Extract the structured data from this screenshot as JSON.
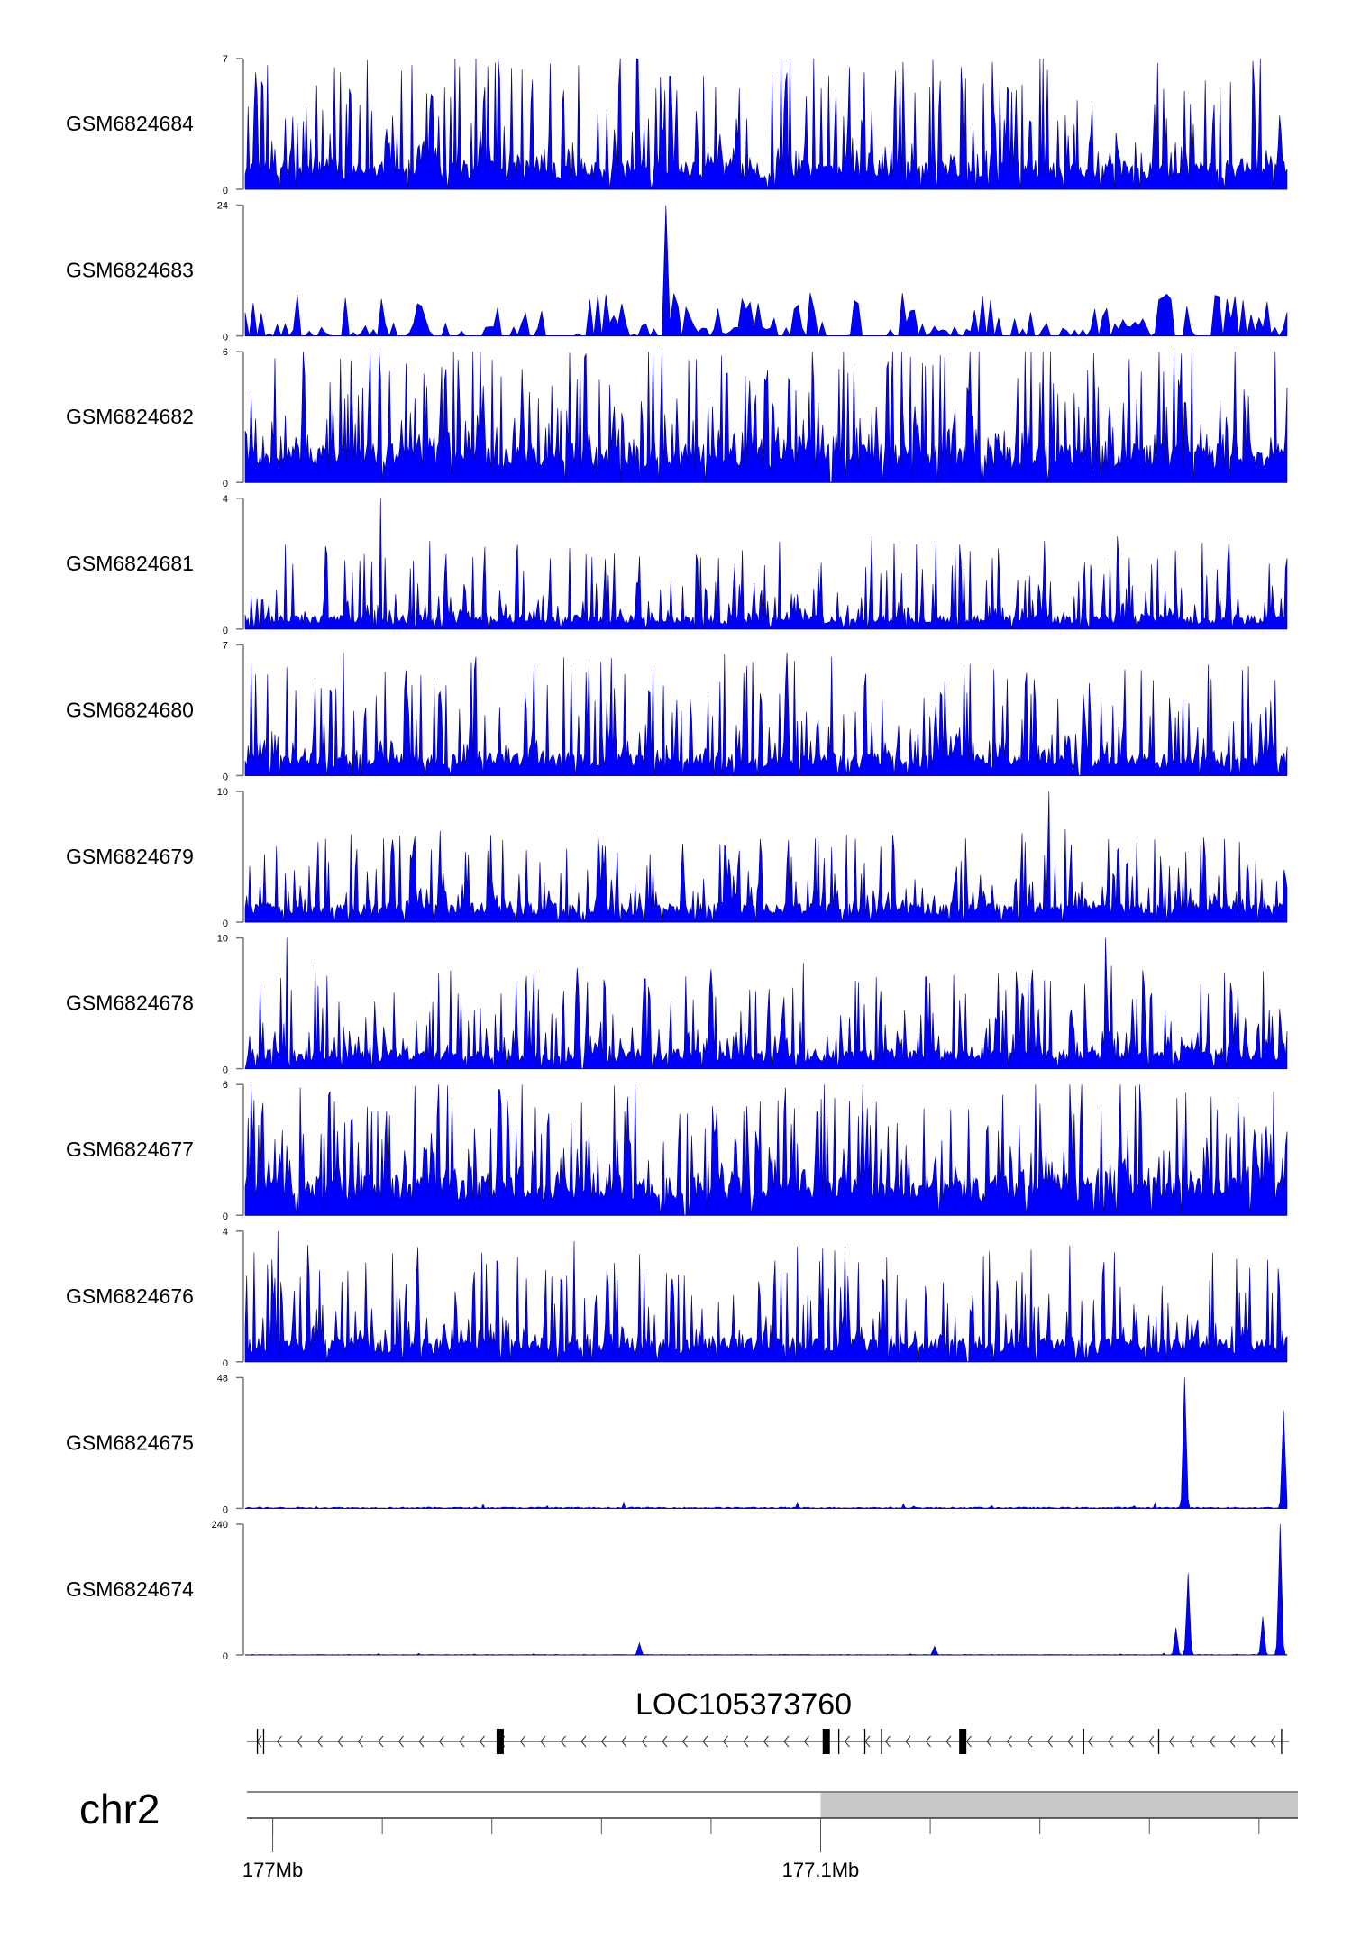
{
  "chart_data": {
    "type": "area",
    "title": "",
    "tracks": [
      {
        "name": "GSM6824684",
        "ylim": [
          0,
          7
        ],
        "baseline": 1.0,
        "spike_max": 6.5,
        "density": 0.55,
        "style": "dense"
      },
      {
        "name": "GSM6824683",
        "ylim": [
          0,
          24
        ],
        "baseline": 0,
        "spike_max": 8,
        "density": 0.25,
        "style": "sparse",
        "peaks": [
          {
            "pos": 0.405,
            "value": 24
          }
        ]
      },
      {
        "name": "GSM6824682",
        "ylim": [
          0,
          6
        ],
        "baseline": 1.2,
        "spike_max": 5.5,
        "density": 0.6,
        "style": "dense"
      },
      {
        "name": "GSM6824681",
        "ylim": [
          0,
          4
        ],
        "baseline": 0.3,
        "spike_max": 2.5,
        "density": 0.4,
        "style": "medium",
        "peaks": [
          {
            "pos": 0.13,
            "value": 4
          }
        ]
      },
      {
        "name": "GSM6824680",
        "ylim": [
          0,
          7
        ],
        "baseline": 0.8,
        "spike_max": 5.5,
        "density": 0.5,
        "style": "dense",
        "peaks": [
          {
            "pos": 0.52,
            "value": 6.6
          }
        ]
      },
      {
        "name": "GSM6824679",
        "ylim": [
          0,
          10
        ],
        "baseline": 1.0,
        "spike_max": 6,
        "density": 0.5,
        "style": "dense",
        "peaks": [
          {
            "pos": 0.772,
            "value": 10
          }
        ]
      },
      {
        "name": "GSM6824678",
        "ylim": [
          0,
          10
        ],
        "baseline": 1.0,
        "spike_max": 7,
        "density": 0.5,
        "style": "dense",
        "peaks": [
          {
            "pos": 0.04,
            "value": 10
          },
          {
            "pos": 0.826,
            "value": 10
          }
        ]
      },
      {
        "name": "GSM6824677",
        "ylim": [
          0,
          6
        ],
        "baseline": 1.2,
        "spike_max": 5,
        "density": 0.6,
        "style": "dense",
        "peaks": [
          {
            "pos": 0.265,
            "value": 6
          }
        ]
      },
      {
        "name": "GSM6824676",
        "ylim": [
          0,
          4
        ],
        "baseline": 0.5,
        "spike_max": 3,
        "density": 0.45,
        "style": "medium",
        "peaks": [
          {
            "pos": 0.031,
            "value": 4
          }
        ]
      },
      {
        "name": "GSM6824675",
        "ylim": [
          0,
          48
        ],
        "baseline": 0.5,
        "spike_max": 2,
        "density": 0.3,
        "style": "flat",
        "peaks": [
          {
            "pos": 0.902,
            "value": 48
          },
          {
            "pos": 0.996,
            "value": 36
          }
        ]
      },
      {
        "name": "GSM6824674",
        "ylim": [
          0,
          240
        ],
        "baseline": 1,
        "spike_max": 3,
        "density": 0.2,
        "style": "flat",
        "peaks": [
          {
            "pos": 0.378,
            "value": 22
          },
          {
            "pos": 0.662,
            "value": 16
          },
          {
            "pos": 0.893,
            "value": 50
          },
          {
            "pos": 0.905,
            "value": 150
          },
          {
            "pos": 0.976,
            "value": 70
          },
          {
            "pos": 0.994,
            "value": 240
          }
        ]
      }
    ],
    "fill_color": "#0000ff",
    "line_color": "#00008b",
    "gene": {
      "name": "LOC105373760",
      "strand": "-",
      "exons": [
        {
          "pos": 0.01,
          "kind": "thin"
        },
        {
          "pos": 0.016,
          "kind": "thin"
        },
        {
          "pos": 0.243,
          "kind": "thick"
        },
        {
          "pos": 0.556,
          "kind": "thick"
        },
        {
          "pos": 0.568,
          "kind": "thin"
        },
        {
          "pos": 0.593,
          "kind": "thin"
        },
        {
          "pos": 0.609,
          "kind": "thin"
        },
        {
          "pos": 0.687,
          "kind": "thick"
        },
        {
          "pos": 0.803,
          "kind": "thin"
        },
        {
          "pos": 0.875,
          "kind": "thin"
        },
        {
          "pos": 0.993,
          "kind": "thin"
        }
      ]
    },
    "ideogram": {
      "chromosome": "chr2",
      "axis_labels": [
        {
          "label": "177Mb",
          "value": 177.0
        },
        {
          "label": "177.1Mb",
          "value": 177.1
        }
      ],
      "range_mb": [
        176.9953,
        177.1871
      ],
      "shaded_from_mb": 177.1,
      "shade_color": "#c8c8c8",
      "minor_tick_mb": 0.02
    }
  }
}
